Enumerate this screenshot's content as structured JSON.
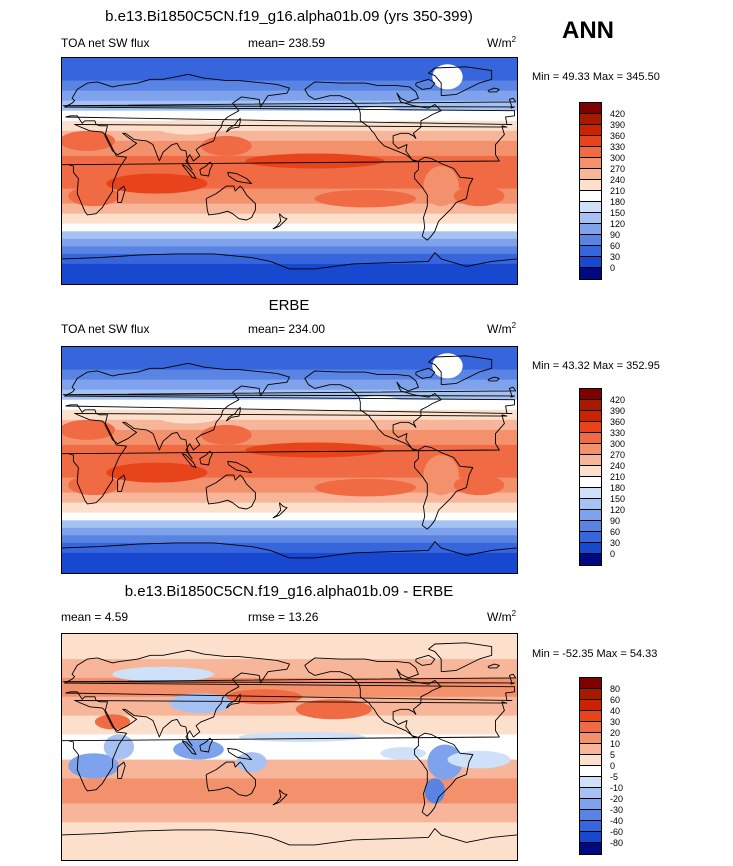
{
  "season": "ANN",
  "chart_data": [
    {
      "type": "heatmap",
      "title": "b.e13.Bi1850C5CN.f19_g16.alpha01b.09 (yrs 350-399)",
      "variable": "TOA net SW flux",
      "stat_label": "mean= 238.59",
      "units": "W/m",
      "units_exp": "2",
      "minmax": "Min =  49.33 Max = 345.50",
      "levels": [
        "420",
        "390",
        "360",
        "330",
        "300",
        "270",
        "240",
        "210",
        "180",
        "150",
        "120",
        "90",
        "60",
        "30",
        "0"
      ],
      "colors": [
        "#7f0000",
        "#a81a00",
        "#cc2200",
        "#e8441b",
        "#f06a43",
        "#f3916d",
        "#f7b69a",
        "#fde0cc",
        "#ffffff",
        "#cfe0f9",
        "#a5c2f3",
        "#7ea3ec",
        "#5a84e4",
        "#3665dc",
        "#1848d0",
        "#000a80"
      ]
    },
    {
      "type": "heatmap",
      "title": "ERBE",
      "variable": "TOA net SW flux",
      "stat_label": "mean= 234.00",
      "units": "W/m",
      "units_exp": "2",
      "minmax": "Min =  43.32 Max = 352.95",
      "levels": [
        "420",
        "390",
        "360",
        "330",
        "300",
        "270",
        "240",
        "210",
        "180",
        "150",
        "120",
        "90",
        "60",
        "30",
        "0"
      ],
      "colors": [
        "#7f0000",
        "#a81a00",
        "#cc2200",
        "#e8441b",
        "#f06a43",
        "#f3916d",
        "#f7b69a",
        "#fde0cc",
        "#ffffff",
        "#cfe0f9",
        "#a5c2f3",
        "#7ea3ec",
        "#5a84e4",
        "#3665dc",
        "#1848d0",
        "#000a80"
      ]
    },
    {
      "type": "heatmap",
      "title": "b.e13.Bi1850C5CN.f19_g16.alpha01b.09 - ERBE",
      "stat_label": "mean =   4.59",
      "stat2_label": "rmse =  13.26",
      "units": "W/m",
      "units_exp": "2",
      "minmax": "Min = -52.35 Max =  54.33",
      "levels": [
        "80",
        "60",
        "40",
        "30",
        "20",
        "10",
        "5",
        "0",
        "-5",
        "-10",
        "-20",
        "-30",
        "-40",
        "-60",
        "-80"
      ],
      "colors": [
        "#7f0000",
        "#a81a00",
        "#cc2200",
        "#e8441b",
        "#f06a43",
        "#f3916d",
        "#f7b69a",
        "#fde0cc",
        "#ffffff",
        "#cfe0f9",
        "#a5c2f3",
        "#7ea3ec",
        "#5a84e4",
        "#3665dc",
        "#1848d0",
        "#000a80"
      ]
    }
  ]
}
